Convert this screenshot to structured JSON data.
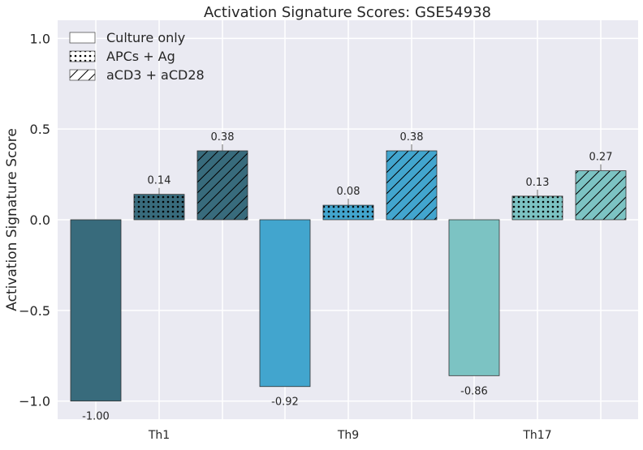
{
  "chart_data": {
    "type": "bar",
    "title": "Activation Signature Scores: GSE54938",
    "xlabel": "",
    "ylabel": "Activation Signature Score",
    "ylim": [
      -1.1,
      1.1
    ],
    "yticks": [
      1.0,
      0.5,
      0.0,
      -0.5,
      -1.0
    ],
    "ytick_labels": [
      "1.0",
      "0.5",
      "0.0",
      "−0.5",
      "−1.0"
    ],
    "categories": [
      "Th1",
      "Th9",
      "Th17"
    ],
    "group_colors": [
      "#386b7c",
      "#42a5ce",
      "#7cc3c3"
    ],
    "grid": true,
    "legend_position": "top-left",
    "series": [
      {
        "name": "Culture only",
        "hatch": "none",
        "values": [
          -1.0,
          -0.92,
          -0.86
        ],
        "labels": [
          "-1.00",
          "-0.92",
          "-0.86"
        ]
      },
      {
        "name": "APCs + Ag",
        "hatch": "dots",
        "values": [
          0.14,
          0.08,
          0.13
        ],
        "labels": [
          "0.14",
          "0.08",
          "0.13"
        ]
      },
      {
        "name": "aCD3 + aCD28",
        "hatch": "diagonal",
        "values": [
          0.38,
          0.38,
          0.27
        ],
        "labels": [
          "0.38",
          "0.38",
          "0.27"
        ]
      }
    ]
  }
}
